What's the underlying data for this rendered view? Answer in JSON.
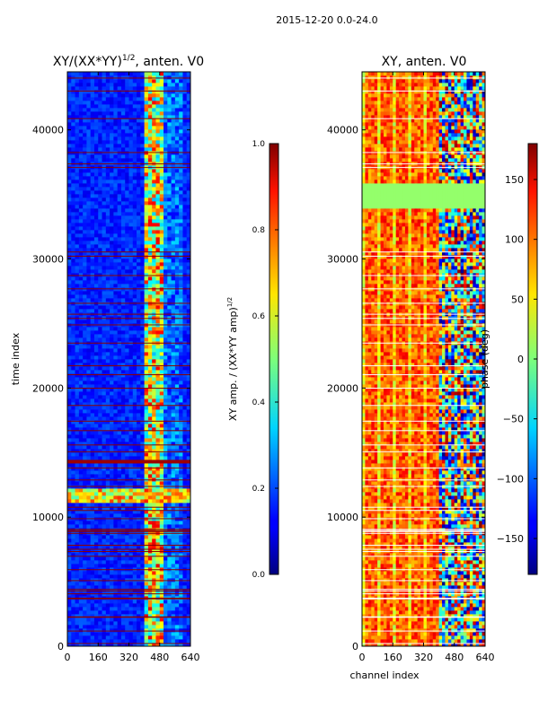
{
  "figure": {
    "suptitle": "2015-12-20 0.0-24.0"
  },
  "chart_data": [
    {
      "type": "heatmap",
      "title": "XY/(XX*YY)",
      "title_superscript": "1/2",
      "title_suffix": ", anten. V0",
      "xlabel": "",
      "ylabel": "time index",
      "xlim": [
        0,
        640
      ],
      "ylim": [
        0,
        44500
      ],
      "xticks": [
        0,
        160,
        320,
        480,
        640
      ],
      "yticks": [
        0,
        10000,
        20000,
        30000,
        40000
      ],
      "colormap": "jet",
      "colorbar": {
        "label": "XY amp. / (XX*YY amp)",
        "label_superscript": "1/2",
        "range": [
          0.0,
          1.0
        ],
        "ticks": [
          "0.0",
          "0.2",
          "0.4",
          "0.6",
          "0.8",
          "1.0"
        ]
      },
      "bright_channel_band": [
        410,
        500
      ],
      "bright_time_band": [
        11300,
        12100
      ],
      "saturated_time_band": [
        14050,
        14400
      ]
    },
    {
      "type": "heatmap",
      "title": "XY, anten. V0",
      "xlabel": "channel index",
      "ylabel": "",
      "xlim": [
        0,
        640
      ],
      "ylim": [
        0,
        44500
      ],
      "xticks": [
        0,
        160,
        320,
        480,
        640
      ],
      "yticks": [
        0,
        10000,
        20000,
        30000,
        40000
      ],
      "colormap": "jet",
      "colorbar": {
        "label": "phase (deg)",
        "range": [
          -180,
          180
        ],
        "ticks": [
          "150",
          "100",
          "50",
          "0",
          "−50",
          "−100",
          "−150"
        ],
        "tick_values": [
          150,
          100,
          50,
          0,
          -50,
          -100,
          -150
        ]
      },
      "flat_time_band": [
        33800,
        35800
      ],
      "noisy_channel_band": [
        400,
        640
      ]
    }
  ]
}
